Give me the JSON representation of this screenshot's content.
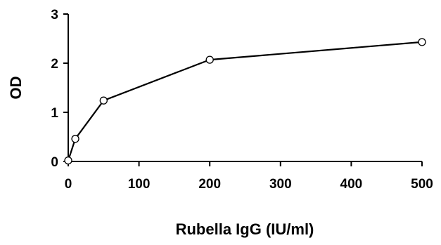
{
  "chart_data": {
    "type": "scatter",
    "title": "",
    "xlabel": "Rubella IgG (IU/ml)",
    "ylabel": "OD",
    "xlim": [
      0,
      500
    ],
    "ylim": [
      0,
      3
    ],
    "xticks": [
      0,
      100,
      200,
      300,
      400,
      500
    ],
    "yticks": [
      0,
      1,
      2,
      3
    ],
    "grid": false,
    "legend": "none",
    "series": [
      {
        "x": [
          0,
          10,
          50,
          200,
          500
        ],
        "y": [
          0.02,
          0.46,
          1.24,
          2.07,
          2.43
        ],
        "color": "#000000",
        "marker": "open-circle",
        "connected": true
      }
    ]
  }
}
